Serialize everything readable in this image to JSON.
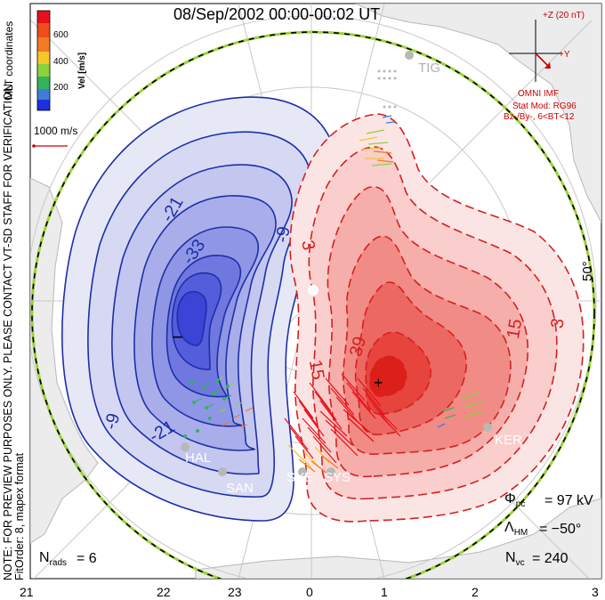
{
  "title": "08/Sep/2002 00:00-00:02 UT",
  "notes": {
    "preview": "NOTE: FOR PREVIEW PURPOSES ONLY. PLEASE CONTACT VT-SD STAFF FOR VERIFICATION.",
    "fit": "FitOrder: 8, mapex format",
    "coords": "MLT coordinates"
  },
  "colorbar": {
    "label": "Vel [m/s]",
    "ticks": [
      "600",
      "400",
      "200"
    ],
    "colors": [
      "#e8101a",
      "#f47a22",
      "#f6c72b",
      "#8ad43a",
      "#35b35b",
      "#3e7ed8",
      "#1f2fe0"
    ]
  },
  "reference_vector": "1000 m/s",
  "imf": {
    "z_label": "+Z (20 nT)",
    "y_label": "+Y",
    "source": "OMNI IMF",
    "model": "Stat Mod: RG96",
    "condition": "Bz-/By-, 6<BT<12"
  },
  "contours": {
    "negative_labels": [
      "-21",
      "-33",
      "-9",
      "-9",
      "-21"
    ],
    "positive_labels": [
      "3",
      "15",
      "39",
      "15",
      "3"
    ],
    "min_marker": "−",
    "max_marker": "+"
  },
  "stations": [
    "TIG",
    "HAL",
    "SAN",
    "SYE",
    "SYS",
    "KER"
  ],
  "latitude_label": "50°",
  "stats": {
    "phi_pc": "= 97 kV",
    "lambda_hm": "= −50°",
    "n_vc": "= 240",
    "n_rads": "= 6"
  },
  "mlt_ticks": [
    "21",
    "22",
    "23",
    "0",
    "1",
    "2",
    "3"
  ]
}
